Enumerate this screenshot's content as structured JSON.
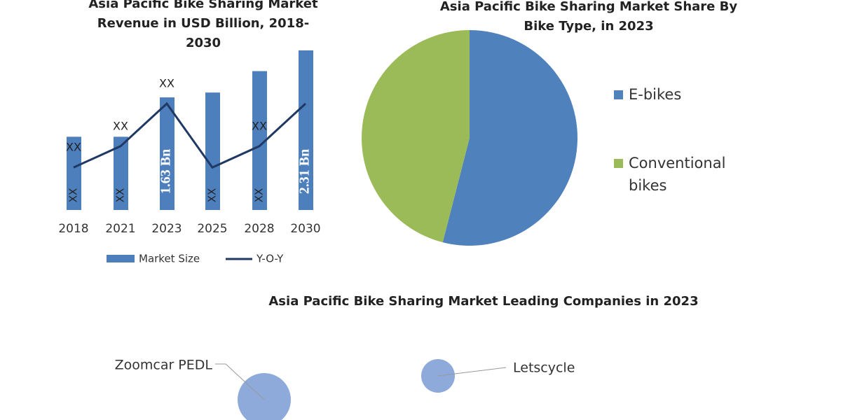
{
  "chart_data": [
    {
      "type": "bar",
      "title": "Asia Pacific Bike Sharing Market Revenue in USD Billion, 2018-2030",
      "categories": [
        "2018",
        "2021",
        "2023",
        "2025",
        "2028",
        "2030"
      ],
      "series": [
        {
          "name": "Market Size",
          "type": "bar",
          "color": "#4e7fbd",
          "values": [
            1.06,
            1.06,
            1.63,
            1.7,
            2.01,
            2.31
          ],
          "value_labels": [
            "XX",
            "XX",
            "1.63 Bn",
            "XX",
            "XX",
            "2.31 Bn"
          ]
        },
        {
          "name": "Y-O-Y",
          "type": "line",
          "color": "#1f3864",
          "values": [
            6,
            9,
            15,
            6,
            9,
            15
          ],
          "value_labels": [
            "XX",
            "XX",
            "XX",
            null,
            "XX",
            null
          ]
        }
      ]
    },
    {
      "type": "pie",
      "title": "Asia Pacific Bike Sharing Market Share By Bike Type, in 2023",
      "categories": [
        "E-bikes",
        "Conventional bikes"
      ],
      "values": [
        54,
        46
      ],
      "colors": [
        "#4f81bd",
        "#9bbb59"
      ]
    },
    {
      "type": "bubble",
      "title": "Asia Pacific Bike Sharing Market Leading Companies in 2023",
      "categories": [
        "Zoomcar PEDL",
        "Letscycle"
      ],
      "values": [
        38,
        24
      ],
      "color": "#8eaadb"
    }
  ]
}
